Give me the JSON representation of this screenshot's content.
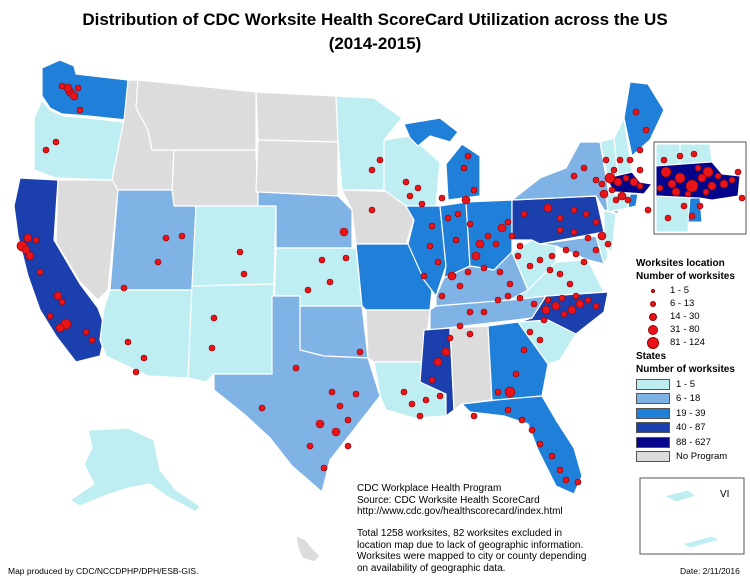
{
  "title": {
    "line1": "Distribution of CDC Worksite Health ScoreCard Utilization across the US",
    "line2": "(2014-2015)"
  },
  "legend": {
    "worksites_heading": "Worksites location",
    "worksites_subheading": "Number of worksites",
    "worksite_classes": [
      {
        "label": "1 - 5",
        "dot": 4
      },
      {
        "label": "6 - 13",
        "dot": 6
      },
      {
        "label": "14 - 30",
        "dot": 8
      },
      {
        "label": "31 - 80",
        "dot": 10
      },
      {
        "label": "81 - 124",
        "dot": 12
      }
    ],
    "states_heading": "States",
    "states_subheading": "Number of worksites",
    "state_classes": [
      {
        "label": "1 - 5",
        "color": "#bfeef2"
      },
      {
        "label": "6 - 18",
        "color": "#7fb2e5"
      },
      {
        "label": "19 - 39",
        "color": "#1f7fd9"
      },
      {
        "label": "40 - 87",
        "color": "#1c3fae"
      },
      {
        "label": "88 - 627",
        "color": "#05058c"
      },
      {
        "label": "No Program",
        "color": "#dcdcdc"
      }
    ]
  },
  "source": {
    "line1": "CDC Workplace Health Program",
    "line2": "Source: CDC Worksite Health ScoreCard",
    "line3": "http://www.cdc.gov/healthscorecard/index.html"
  },
  "note": {
    "line1": "Total 1258 worksites, 82 worksites excluded in",
    "line2": "location map due to lack of geographic information.",
    "line3": "Worksites were mapped to city or county depending",
    "line4": "on availability of geographic data."
  },
  "produced_by": "Map produced by CDC/NCCDPHP/DPH/ESB-GIS.",
  "date": "Date: 2/11/2016",
  "vi_label": "VI",
  "colors": {
    "c1": "#bfeef2",
    "c2": "#7fb2e5",
    "c3": "#1f7fd9",
    "c4": "#1c3fae",
    "c5": "#05058c",
    "none": "#dcdcdc",
    "dot": "#e8141a"
  },
  "states": [
    {
      "id": "WA",
      "cls": "c3"
    },
    {
      "id": "OR",
      "cls": "c1"
    },
    {
      "id": "CA",
      "cls": "c4"
    },
    {
      "id": "NV",
      "cls": "none"
    },
    {
      "id": "ID",
      "cls": "none"
    },
    {
      "id": "MT",
      "cls": "none"
    },
    {
      "id": "WY",
      "cls": "none"
    },
    {
      "id": "UT",
      "cls": "c2"
    },
    {
      "id": "AZ",
      "cls": "c1"
    },
    {
      "id": "CO",
      "cls": "c1"
    },
    {
      "id": "NM",
      "cls": "c1"
    },
    {
      "id": "ND",
      "cls": "none"
    },
    {
      "id": "SD",
      "cls": "none"
    },
    {
      "id": "NE",
      "cls": "c2"
    },
    {
      "id": "KS",
      "cls": "c1"
    },
    {
      "id": "OK",
      "cls": "c2"
    },
    {
      "id": "TX",
      "cls": "c2"
    },
    {
      "id": "MN",
      "cls": "c1"
    },
    {
      "id": "IA",
      "cls": "none"
    },
    {
      "id": "MO",
      "cls": "c3"
    },
    {
      "id": "AR",
      "cls": "none"
    },
    {
      "id": "LA",
      "cls": "c1"
    },
    {
      "id": "WI",
      "cls": "c1"
    },
    {
      "id": "IL",
      "cls": "c3"
    },
    {
      "id": "MI",
      "cls": "c3"
    },
    {
      "id": "IN",
      "cls": "c3"
    },
    {
      "id": "OH",
      "cls": "c3"
    },
    {
      "id": "KY",
      "cls": "c2"
    },
    {
      "id": "TN",
      "cls": "c2"
    },
    {
      "id": "MS",
      "cls": "c4"
    },
    {
      "id": "AL",
      "cls": "none"
    },
    {
      "id": "GA",
      "cls": "c3"
    },
    {
      "id": "FL",
      "cls": "c3"
    },
    {
      "id": "SC",
      "cls": "c1"
    },
    {
      "id": "NC",
      "cls": "c4"
    },
    {
      "id": "VA",
      "cls": "c1"
    },
    {
      "id": "WV",
      "cls": "c1"
    },
    {
      "id": "PA",
      "cls": "c4"
    },
    {
      "id": "NY",
      "cls": "c2"
    },
    {
      "id": "NJ",
      "cls": "c1"
    },
    {
      "id": "MD",
      "cls": "c2"
    },
    {
      "id": "DE",
      "cls": "c1"
    },
    {
      "id": "VT",
      "cls": "c1"
    },
    {
      "id": "NH",
      "cls": "c1"
    },
    {
      "id": "ME",
      "cls": "c3"
    },
    {
      "id": "MA",
      "cls": "c5"
    },
    {
      "id": "CT",
      "cls": "c1"
    },
    {
      "id": "RI",
      "cls": "c3"
    },
    {
      "id": "AK",
      "cls": "c1"
    },
    {
      "id": "HI",
      "cls": "none"
    },
    {
      "id": "VI",
      "cls": "c1"
    }
  ]
}
